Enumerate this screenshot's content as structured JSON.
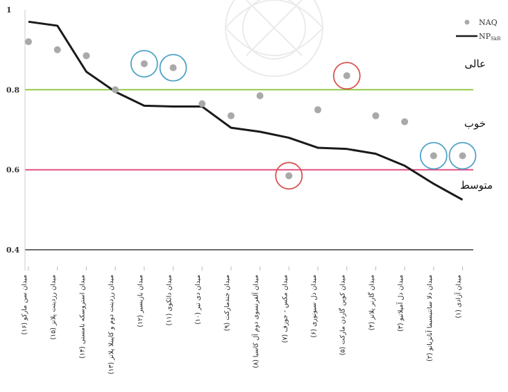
{
  "colors": {
    "naq_marker": "#a9a9a9",
    "np_line": "#1a1a1a",
    "line_excellent": "#8cc63f",
    "line_medium": "#e0457b",
    "line_base": "#555555",
    "circle_blue": "#4fa3c7",
    "circle_red": "#d9534f"
  },
  "chart_data": {
    "type": "line",
    "categories": [
      "(۱۶) میدان سن مارکو",
      "(۱۵) میدان رزدینت پلاتز",
      "(۱۴) میدان استروسکه نامستی",
      "(۱۳) میدان رزدینت دوم و کاپیتلا پلاتز",
      "(۱۲) میدان بازیسیر",
      "(۱۱) میدان دائکوی",
      "(۱۰) میدان دی تیر",
      "(۹) میدان جندمارکت",
      "(۸) میدان آلفرنسوی دوم آل کاسیا",
      "(۷) میدان مکس - جوزف",
      "(۶) میدان دل سیونوری",
      "(۵) میدان کوین گاردن مارکت",
      "(۴) میدان گارنر پلاتز",
      "(۳) میدان دل آمپلاتیو",
      "(۲) میدان دلا سانتیسیما آنانزیاتو",
      "(۱) میدان آزادی"
    ],
    "series": [
      {
        "name": "NAQ",
        "kind": "scatter",
        "values": [
          0.92,
          0.9,
          0.885,
          0.8,
          0.865,
          0.855,
          0.765,
          0.735,
          0.785,
          0.585,
          0.75,
          0.835,
          0.735,
          0.72,
          0.635,
          0.635
        ]
      },
      {
        "name": "NP",
        "name_subscript": "SkR",
        "kind": "line",
        "values": [
          0.97,
          0.96,
          0.845,
          0.795,
          0.76,
          0.758,
          0.758,
          0.705,
          0.695,
          0.68,
          0.655,
          0.652,
          0.64,
          0.61,
          0.565,
          0.525
        ]
      }
    ],
    "reference_lines": [
      {
        "y": 0.8,
        "color_key": "line_excellent"
      },
      {
        "y": 0.6,
        "color_key": "line_medium"
      },
      {
        "y": 0.4,
        "color_key": "line_base"
      }
    ],
    "zone_labels": [
      "عالی",
      "خوب",
      "متوسط"
    ],
    "highlight_circles": [
      {
        "index": 4,
        "color_key": "circle_blue"
      },
      {
        "index": 5,
        "color_key": "circle_blue"
      },
      {
        "index": 9,
        "color_key": "circle_red"
      },
      {
        "index": 11,
        "color_key": "circle_red"
      },
      {
        "index": 14,
        "color_key": "circle_blue"
      },
      {
        "index": 15,
        "color_key": "circle_blue"
      }
    ],
    "y_ticks": [
      "1",
      "0.8",
      "0.6",
      "0.4"
    ],
    "y_tick_values": [
      1,
      0.8,
      0.6,
      0.4
    ],
    "ylim": [
      0.37,
      1.0
    ],
    "legend_position": "top-right",
    "grid": false
  }
}
